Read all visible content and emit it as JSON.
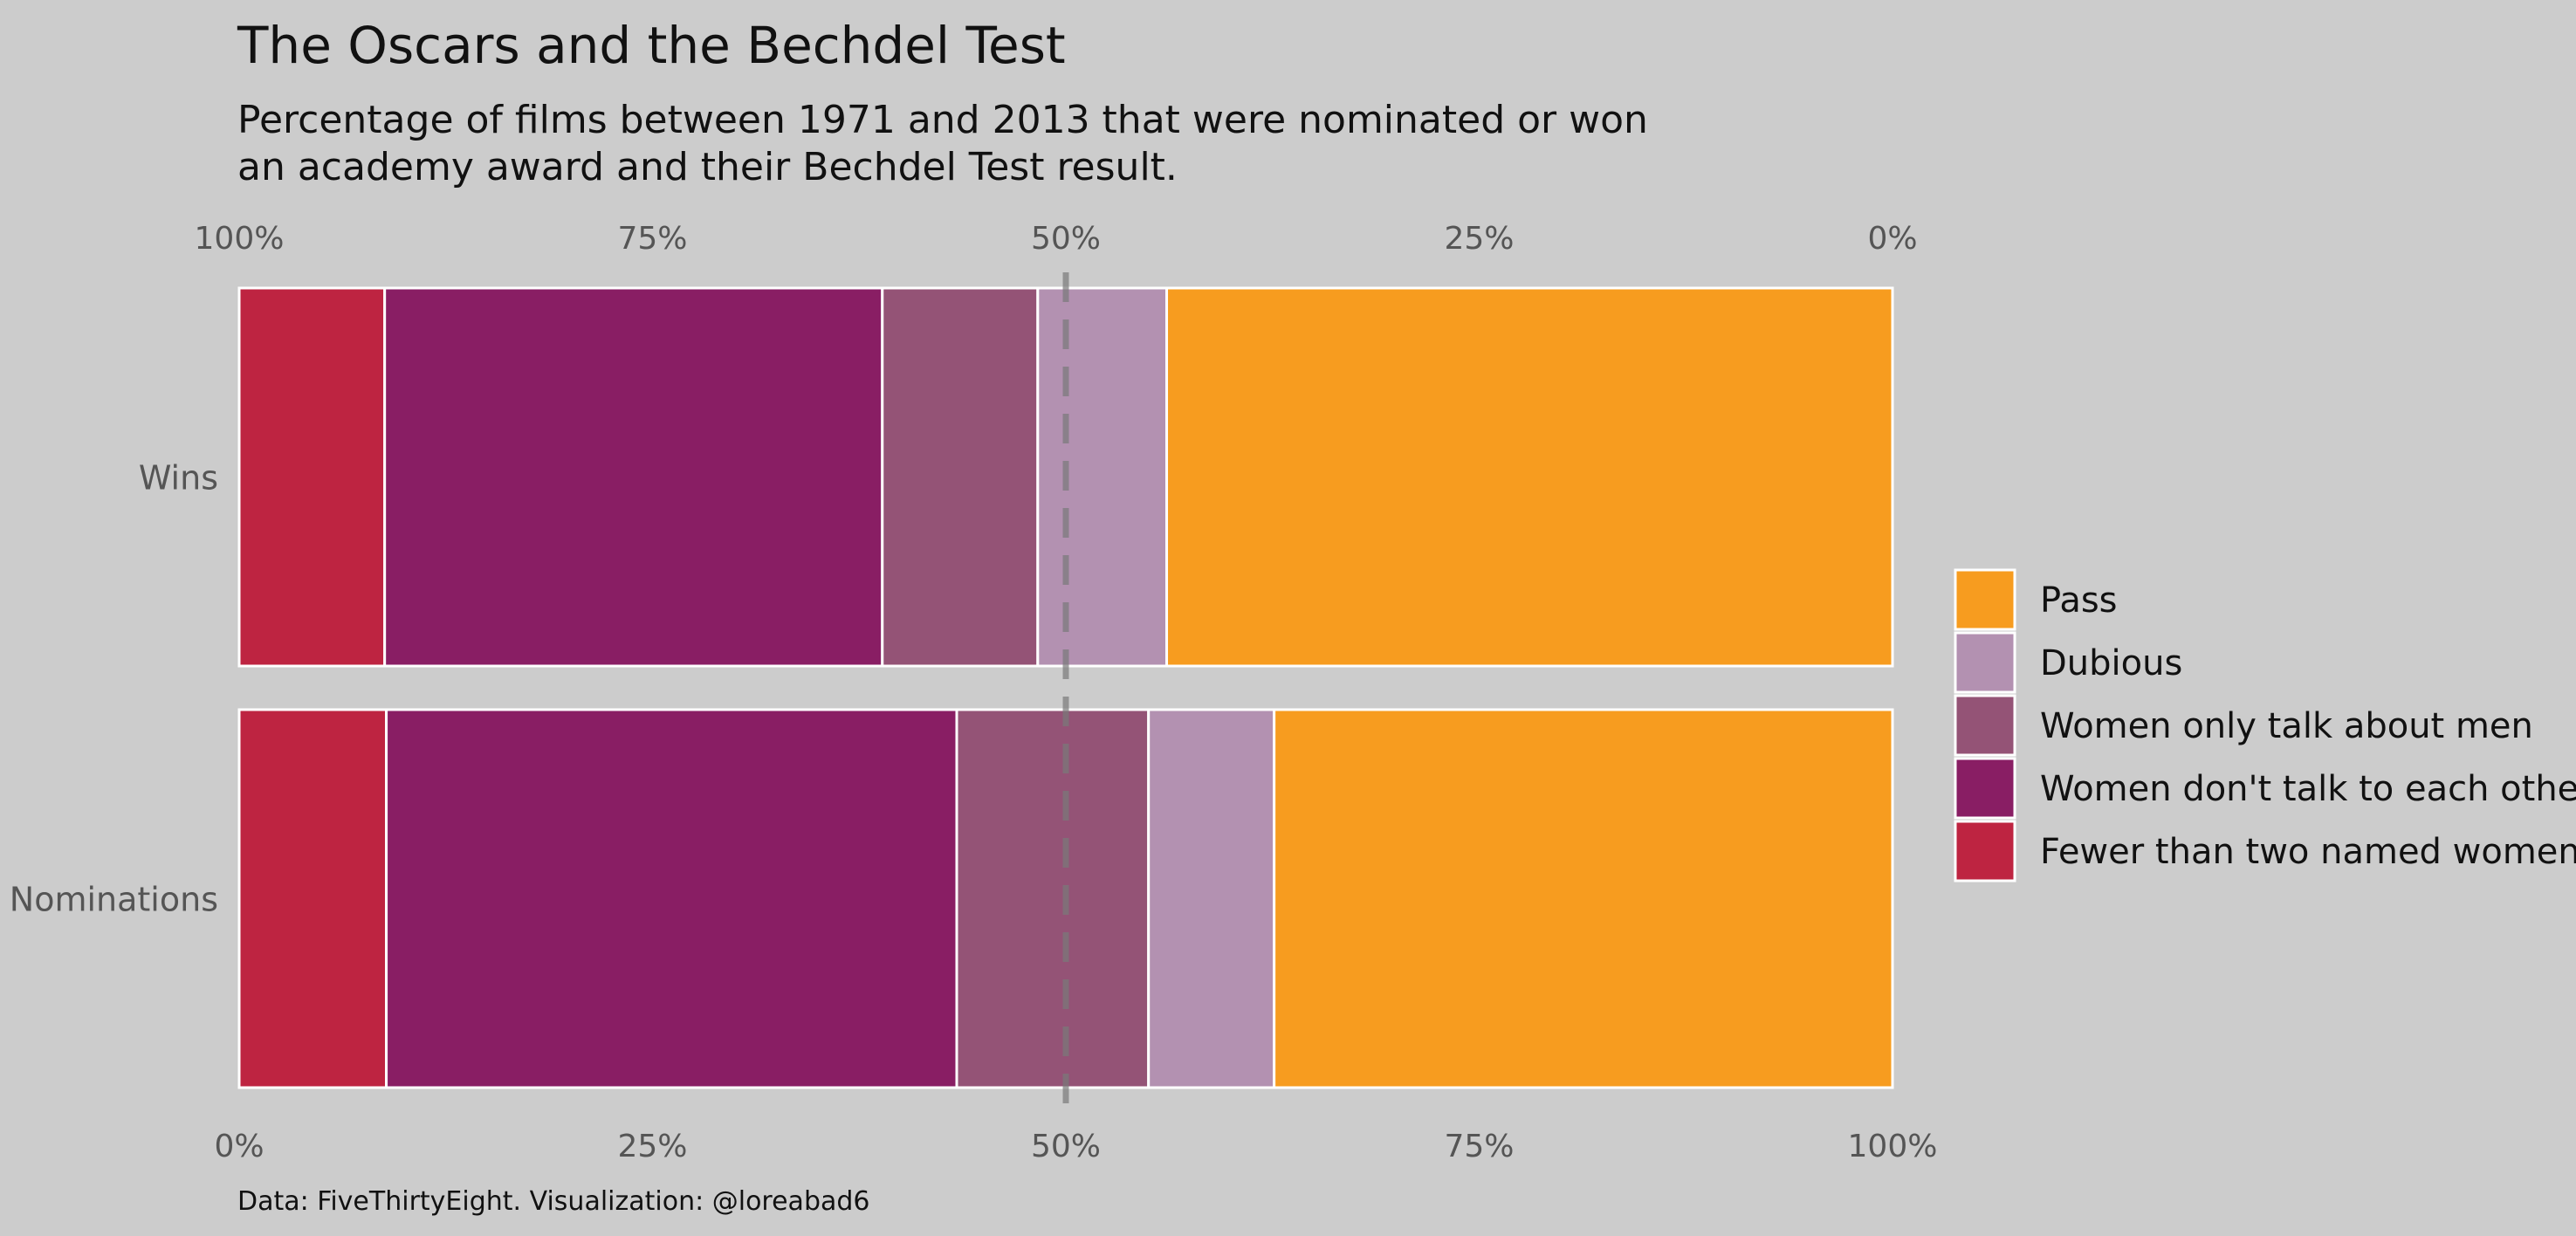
{
  "chart_data": {
    "type": "bar",
    "orientation": "horizontal",
    "stacked": true,
    "title": "The Oscars and the Bechdel Test",
    "subtitle_lines": [
      "Percentage of films between 1971 and 2013 that were nominated or won",
      "an academy award and their Bechdel Test result."
    ],
    "caption": "Data: FiveThirtyEight. Visualization: @loreabad6",
    "categories": [
      "Wins",
      "Nominations"
    ],
    "series": [
      {
        "name": "Fewer than two named women",
        "color": "#be2441",
        "values": [
          8.8,
          8.9
        ]
      },
      {
        "name": "Women don't talk to each other",
        "color": "#891e64",
        "values": [
          30.1,
          34.5
        ]
      },
      {
        "name": "Women only talk about men",
        "color": "#945376",
        "values": [
          9.4,
          11.6
        ]
      },
      {
        "name": "Dubious",
        "color": "#b391b1",
        "values": [
          7.8,
          7.6
        ]
      },
      {
        "name": "Pass",
        "color": "#f79c1f",
        "values": [
          43.9,
          37.4
        ]
      }
    ],
    "legend_order": [
      "Pass",
      "Dubious",
      "Women only talk about men",
      "Women don't talk to each other",
      "Fewer than two named women"
    ],
    "top_axis_ticks": [
      "100%",
      "75%",
      "50%",
      "25%",
      "0%"
    ],
    "bottom_axis_ticks": [
      "0%",
      "25%",
      "50%",
      "75%",
      "100%"
    ],
    "xlim": [
      0,
      100
    ],
    "reference_line": 50,
    "legend_position": "right",
    "grid": false
  }
}
